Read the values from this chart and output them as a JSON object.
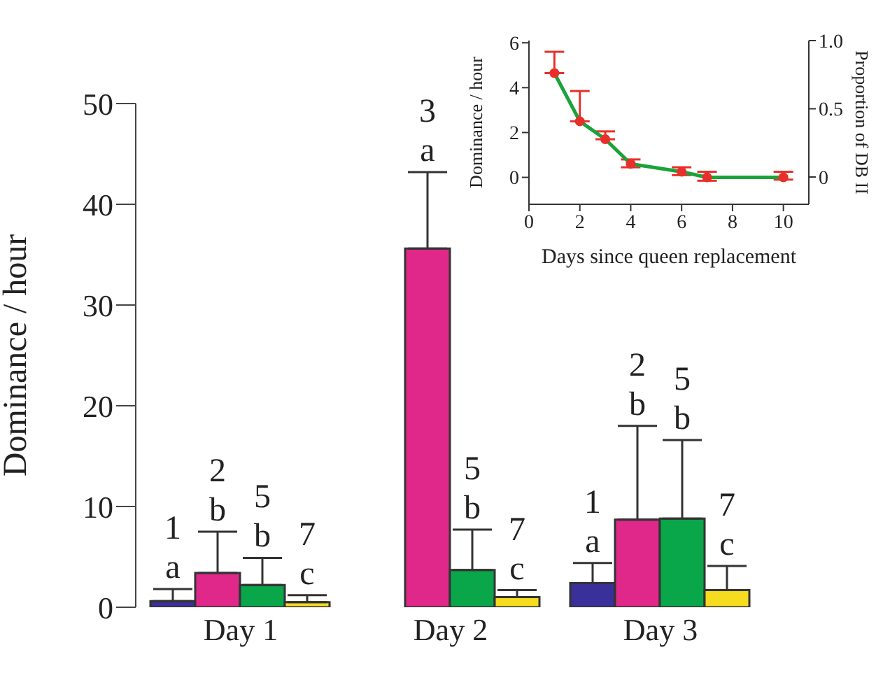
{
  "chart_data": [
    {
      "type": "bar",
      "categories": [
        "Day 1",
        "Day 2",
        "Day 3"
      ],
      "ylabel": "Dominance / hour",
      "ylim": [
        0,
        50
      ],
      "yticks": [
        0,
        10,
        20,
        30,
        40,
        50
      ],
      "grid": false,
      "legend": false,
      "series": [
        {
          "color": "#3b2f9a",
          "values": [
            0.6,
            0,
            2.4
          ],
          "errors": [
            [
              0.6,
              1.8
            ],
            null,
            [
              2.4,
              4.4
            ]
          ]
        },
        {
          "color": "#e0288a",
          "values": [
            3.4,
            35.6,
            8.7
          ],
          "errors": [
            [
              3.4,
              7.5
            ],
            [
              35.6,
              43.2
            ],
            [
              8.7,
              18.0
            ]
          ]
        },
        {
          "color": "#0aa64a",
          "values": [
            2.2,
            3.7,
            8.8
          ],
          "errors": [
            [
              2.2,
              4.9
            ],
            [
              3.7,
              7.7
            ],
            [
              8.8,
              16.6
            ]
          ]
        },
        {
          "color": "#f5dc1e",
          "values": [
            0.5,
            1.0,
            1.7
          ],
          "errors": [
            [
              0.5,
              1.2
            ],
            [
              1.0,
              1.7
            ],
            [
              1.7,
              4.1
            ]
          ]
        }
      ],
      "annotations": [
        {
          "text": "1\na",
          "x": "Day 1",
          "y": 1.8
        },
        {
          "text": "2\nb",
          "x": "Day 1",
          "y": 7.5
        },
        {
          "text": "5\nb",
          "x": "Day 1",
          "y": 4.9
        },
        {
          "text": "7\nc",
          "x": "Day 1",
          "y": 1.2
        },
        {
          "text": "3\na",
          "x": "Day 2",
          "y": 43.2
        },
        {
          "text": "5\nb",
          "x": "Day 2",
          "y": 7.7
        },
        {
          "text": "7\nc",
          "x": "Day 2",
          "y": 1.7
        },
        {
          "text": "1\na",
          "x": "Day 3",
          "y": 4.4
        },
        {
          "text": "2\nb",
          "x": "Day 3",
          "y": 18.0
        },
        {
          "text": "5\nb",
          "x": "Day 3",
          "y": 16.6
        },
        {
          "text": "7\nc",
          "x": "Day 3",
          "y": 4.1
        }
      ]
    },
    {
      "type": "line",
      "x": [
        1,
        2,
        3,
        4,
        6,
        7,
        10
      ],
      "xlim": [
        0,
        11
      ],
      "xticks": [
        0,
        2,
        4,
        6,
        8,
        10
      ],
      "ylim": [
        -1.2,
        6.1
      ],
      "yticks": [
        0,
        2,
        4,
        6
      ],
      "y2lim": [
        -0.2,
        1.0
      ],
      "y2ticks": [
        {
          "value": 1,
          "label": "1.0"
        },
        0.5,
        0
      ],
      "xlabel": "Days since queen replacement",
      "ylabel": "Dominance / hour",
      "y2label": "Proportion of DB II",
      "marker": "circle",
      "grid": false,
      "legend": false,
      "series": [
        {
          "color": "#1aa33a",
          "colors": [
            "#e8302a",
            "#e8302a",
            "#e8302a",
            "#e8302a",
            "#e8302a",
            "#e8302a",
            "#e8302a"
          ],
          "values": [
            4.65,
            2.5,
            1.7,
            0.6,
            0.25,
            0,
            0
          ],
          "errors": [
            [
              4.65,
              5.6
            ],
            [
              2.5,
              3.85
            ],
            [
              1.7,
              2.05
            ],
            [
              0.45,
              0.8
            ],
            [
              0.1,
              0.45
            ],
            [
              -0.15,
              0.25
            ],
            [
              -0.1,
              0.25
            ]
          ]
        }
      ]
    }
  ]
}
